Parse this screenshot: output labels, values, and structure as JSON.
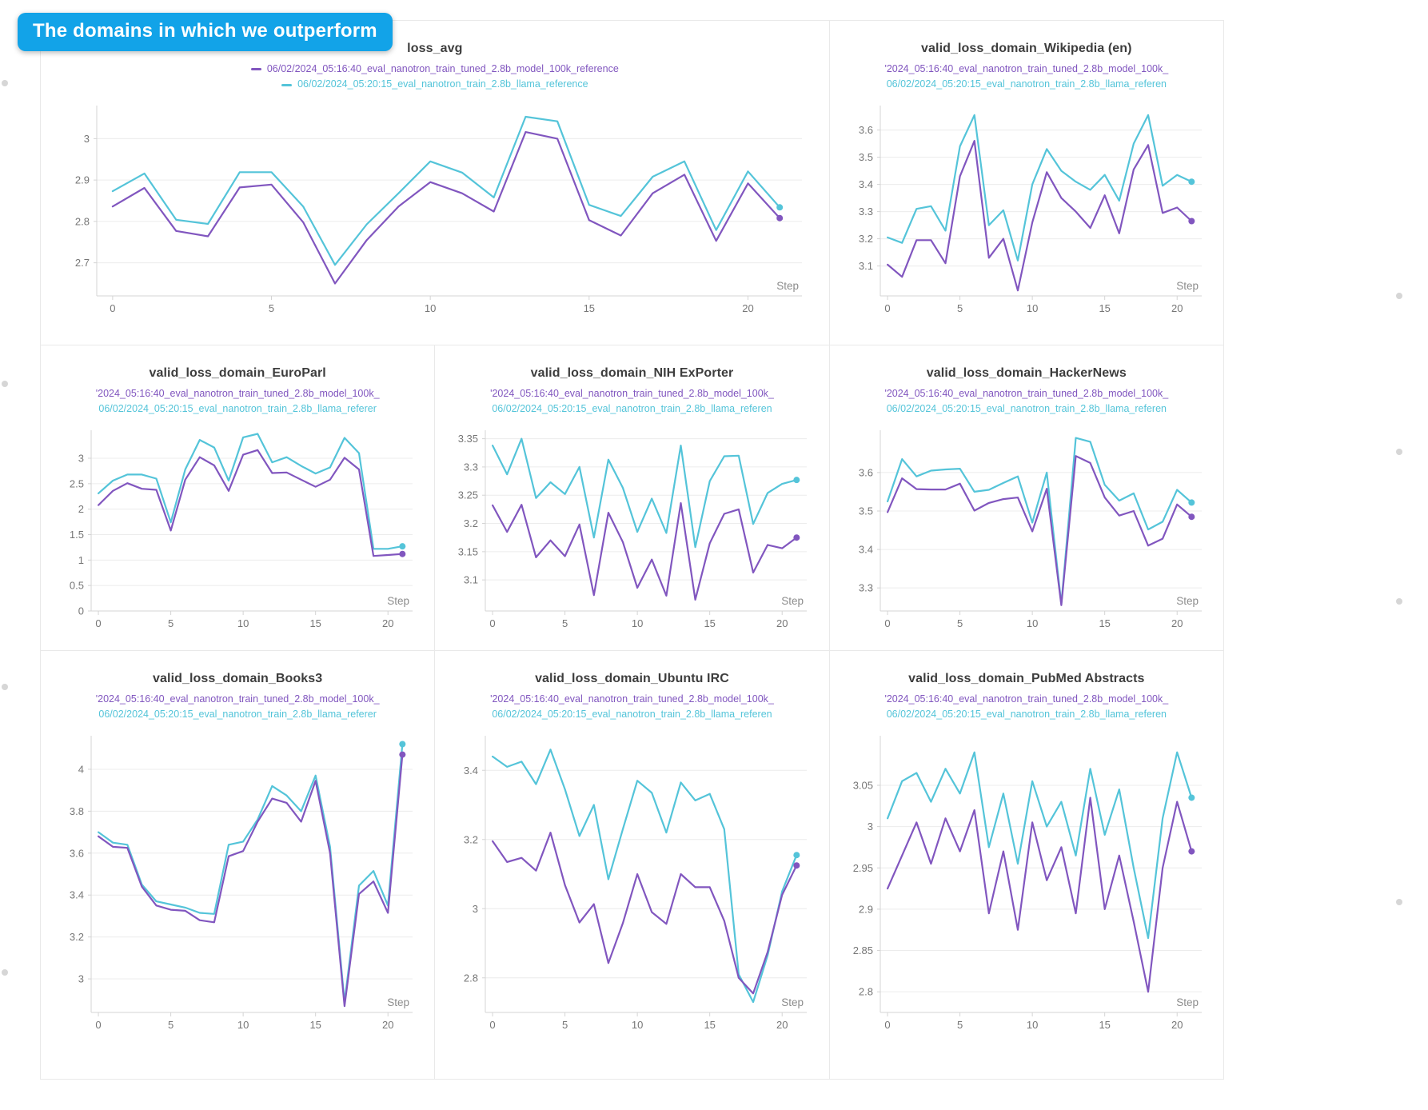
{
  "callout": {
    "label": "The domains in which we outperform",
    "bg": "#12a3e8"
  },
  "colors": {
    "run1": "#8156bf",
    "run2": "#54c4d9",
    "grid": "#ececec",
    "axis": "#d4d4d4",
    "tick_text": "#767676",
    "step_text": "#8c8c8c",
    "title_text": "#3d3d3d"
  },
  "chart_data": [
    {
      "type": "line",
      "title": "loss_avg",
      "legend": [
        "06/02/2024_05:16:40_eval_nanotron_train_tuned_2.8b_model_100k_reference",
        "06/02/2024_05:20:15_eval_nanotron_train_2.8b_llama_reference"
      ],
      "xlabel": "Step",
      "x": [
        0,
        1,
        2,
        3,
        4,
        5,
        6,
        7,
        8,
        9,
        10,
        11,
        12,
        13,
        14,
        15,
        16,
        17,
        18,
        19,
        20,
        21
      ],
      "xticks": [
        0,
        5,
        10,
        15,
        20
      ],
      "xlim": [
        -0.5,
        21.7
      ],
      "yticks": [
        2.7,
        2.8,
        2.9,
        3
      ],
      "ylim": [
        2.62,
        3.08
      ],
      "grid": true,
      "legend_position": "top",
      "series": [
        {
          "name": "06/02/2024_05:16:40_eval_nanotron_train_tuned_2.8b_model_100k_reference",
          "values": [
            2.836,
            2.881,
            2.777,
            2.764,
            2.882,
            2.889,
            2.798,
            2.65,
            2.755,
            2.836,
            2.895,
            2.868,
            2.824,
            3.016,
            3.0,
            2.803,
            2.766,
            2.868,
            2.913,
            2.753,
            2.892,
            2.808
          ]
        },
        {
          "name": "06/02/2024_05:20:15_eval_nanotron_train_2.8b_llama_reference",
          "values": [
            2.873,
            2.916,
            2.804,
            2.794,
            2.919,
            2.919,
            2.836,
            2.695,
            2.793,
            2.868,
            2.945,
            2.918,
            2.858,
            3.053,
            3.042,
            2.84,
            2.813,
            2.908,
            2.945,
            2.779,
            2.921,
            2.834
          ]
        }
      ]
    },
    {
      "type": "line",
      "title": "valid_loss_domain_Wikipedia (en)",
      "legend": [
        "'2024_05:16:40_eval_nanotron_train_tuned_2.8b_model_100k_",
        "06/02/2024_05:20:15_eval_nanotron_train_2.8b_llama_referen"
      ],
      "xlabel": "Step",
      "x": [
        0,
        1,
        2,
        3,
        4,
        5,
        6,
        7,
        8,
        9,
        10,
        11,
        12,
        13,
        14,
        15,
        16,
        17,
        18,
        19,
        20,
        21
      ],
      "xticks": [
        0,
        5,
        10,
        15,
        20
      ],
      "xlim": [
        -0.5,
        21.7
      ],
      "yticks": [
        3.1,
        3.2,
        3.3,
        3.4,
        3.5,
        3.6
      ],
      "ylim": [
        2.99,
        3.69
      ],
      "grid": true,
      "series": [
        {
          "name": "'2024_05:16:40_eval_nanotron_train_tuned_2.8b_model_100k_",
          "values": [
            3.105,
            3.06,
            3.195,
            3.195,
            3.11,
            3.43,
            3.56,
            3.13,
            3.2,
            3.01,
            3.26,
            3.445,
            3.35,
            3.3,
            3.24,
            3.36,
            3.22,
            3.455,
            3.545,
            3.295,
            3.315,
            3.265
          ]
        },
        {
          "name": "06/02/2024_05:20:15_eval_nanotron_train_2.8b_llama_referen",
          "values": [
            3.205,
            3.185,
            3.31,
            3.32,
            3.23,
            3.54,
            3.655,
            3.25,
            3.305,
            3.12,
            3.4,
            3.53,
            3.45,
            3.41,
            3.38,
            3.435,
            3.34,
            3.55,
            3.655,
            3.395,
            3.435,
            3.41
          ]
        }
      ]
    },
    {
      "type": "line",
      "title": "valid_loss_domain_EuroParl",
      "legend": [
        "'2024_05:16:40_eval_nanotron_train_tuned_2.8b_model_100k_",
        "06/02/2024_05:20:15_eval_nanotron_train_2.8b_llama_referer"
      ],
      "xlabel": "Step",
      "x": [
        0,
        1,
        2,
        3,
        4,
        5,
        6,
        7,
        8,
        9,
        10,
        11,
        12,
        13,
        14,
        15,
        16,
        17,
        18,
        19,
        20,
        21
      ],
      "xticks": [
        0,
        5,
        10,
        15,
        20
      ],
      "xlim": [
        -0.5,
        21.7
      ],
      "yticks": [
        0,
        0.5,
        1,
        1.5,
        2,
        2.5,
        3
      ],
      "ylim": [
        0,
        3.55
      ],
      "grid": true,
      "series": [
        {
          "name": "'2024_05:16:40_eval_nanotron_train_tuned_2.8b_model_100k_",
          "values": [
            2.08,
            2.36,
            2.51,
            2.4,
            2.38,
            1.58,
            2.58,
            3.02,
            2.86,
            2.36,
            3.07,
            3.16,
            2.71,
            2.72,
            2.58,
            2.44,
            2.58,
            3.01,
            2.78,
            1.08,
            1.1,
            1.12
          ]
        },
        {
          "name": "06/02/2024_05:20:15_eval_nanotron_train_2.8b_llama_referer",
          "values": [
            2.31,
            2.56,
            2.68,
            2.68,
            2.6,
            1.74,
            2.78,
            3.36,
            3.21,
            2.56,
            3.41,
            3.48,
            2.92,
            3.02,
            2.85,
            2.7,
            2.82,
            3.4,
            3.1,
            1.22,
            1.22,
            1.27
          ]
        }
      ]
    },
    {
      "type": "line",
      "title": "valid_loss_domain_NIH ExPorter",
      "legend": [
        "'2024_05:16:40_eval_nanotron_train_tuned_2.8b_model_100k_",
        "06/02/2024_05:20:15_eval_nanotron_train_2.8b_llama_referen"
      ],
      "xlabel": "Step",
      "x": [
        0,
        1,
        2,
        3,
        4,
        5,
        6,
        7,
        8,
        9,
        10,
        11,
        12,
        13,
        14,
        15,
        16,
        17,
        18,
        19,
        20,
        21
      ],
      "xticks": [
        0,
        5,
        10,
        15,
        20
      ],
      "xlim": [
        -0.5,
        21.7
      ],
      "yticks": [
        3.1,
        3.15,
        3.2,
        3.25,
        3.3,
        3.35
      ],
      "ylim": [
        3.045,
        3.365
      ],
      "grid": true,
      "series": [
        {
          "name": "'2024_05:16:40_eval_nanotron_train_tuned_2.8b_model_100k_",
          "values": [
            3.232,
            3.185,
            3.233,
            3.14,
            3.17,
            3.142,
            3.198,
            3.073,
            3.219,
            3.167,
            3.086,
            3.136,
            3.072,
            3.236,
            3.065,
            3.165,
            3.217,
            3.225,
            3.113,
            3.162,
            3.156,
            3.175
          ]
        },
        {
          "name": "06/02/2024_05:20:15_eval_nanotron_train_2.8b_llama_referen",
          "values": [
            3.338,
            3.287,
            3.35,
            3.245,
            3.273,
            3.252,
            3.3,
            3.175,
            3.313,
            3.263,
            3.185,
            3.244,
            3.183,
            3.338,
            3.158,
            3.275,
            3.319,
            3.32,
            3.199,
            3.254,
            3.27,
            3.277
          ]
        }
      ]
    },
    {
      "type": "line",
      "title": "valid_loss_domain_HackerNews",
      "legend": [
        "'2024_05:16:40_eval_nanotron_train_tuned_2.8b_model_100k_",
        "06/02/2024_05:20:15_eval_nanotron_train_2.8b_llama_referen"
      ],
      "xlabel": "Step",
      "x": [
        0,
        1,
        2,
        3,
        4,
        5,
        6,
        7,
        8,
        9,
        10,
        11,
        12,
        13,
        14,
        15,
        16,
        17,
        18,
        19,
        20,
        21
      ],
      "xticks": [
        0,
        5,
        10,
        15,
        20
      ],
      "xlim": [
        -0.5,
        21.7
      ],
      "yticks": [
        3.3,
        3.4,
        3.5,
        3.6
      ],
      "ylim": [
        3.24,
        3.71
      ],
      "grid": true,
      "series": [
        {
          "name": "'2024_05:16:40_eval_nanotron_train_tuned_2.8b_model_100k_",
          "values": [
            3.497,
            3.585,
            3.557,
            3.556,
            3.556,
            3.571,
            3.501,
            3.521,
            3.531,
            3.535,
            3.447,
            3.558,
            3.255,
            3.643,
            3.625,
            3.535,
            3.488,
            3.5,
            3.41,
            3.428,
            3.517,
            3.485
          ]
        },
        {
          "name": "06/02/2024_05:20:15_eval_nanotron_train_2.8b_llama_referen",
          "values": [
            3.525,
            3.635,
            3.59,
            3.605,
            3.608,
            3.61,
            3.55,
            3.555,
            3.573,
            3.59,
            3.47,
            3.6,
            3.258,
            3.69,
            3.68,
            3.568,
            3.527,
            3.546,
            3.452,
            3.472,
            3.555,
            3.522
          ]
        }
      ]
    },
    {
      "type": "line",
      "title": "valid_loss_domain_Books3",
      "legend": [
        "'2024_05:16:40_eval_nanotron_train_tuned_2.8b_model_100k_",
        "06/02/2024_05:20:15_eval_nanotron_train_2.8b_llama_referer"
      ],
      "xlabel": "Step",
      "x": [
        0,
        1,
        2,
        3,
        4,
        5,
        6,
        7,
        8,
        9,
        10,
        11,
        12,
        13,
        14,
        15,
        16,
        17,
        18,
        19,
        20,
        21
      ],
      "xticks": [
        0,
        5,
        10,
        15,
        20
      ],
      "xlim": [
        -0.5,
        21.7
      ],
      "yticks": [
        3,
        3.2,
        3.4,
        3.6,
        3.8,
        4
      ],
      "ylim": [
        2.84,
        4.16
      ],
      "grid": true,
      "series": [
        {
          "name": "'2024_05:16:40_eval_nanotron_train_tuned_2.8b_model_100k_",
          "values": [
            3.68,
            3.63,
            3.625,
            3.44,
            3.35,
            3.33,
            3.325,
            3.28,
            3.27,
            3.585,
            3.61,
            3.75,
            3.86,
            3.84,
            3.75,
            3.945,
            3.6,
            2.87,
            3.405,
            3.465,
            3.315,
            4.07
          ]
        },
        {
          "name": "06/02/2024_05:20:15_eval_nanotron_train_2.8b_llama_referer",
          "values": [
            3.7,
            3.65,
            3.64,
            3.45,
            3.37,
            3.355,
            3.34,
            3.315,
            3.31,
            3.64,
            3.655,
            3.76,
            3.92,
            3.875,
            3.8,
            3.97,
            3.63,
            2.89,
            3.445,
            3.515,
            3.35,
            4.12
          ]
        }
      ]
    },
    {
      "type": "line",
      "title": "valid_loss_domain_Ubuntu IRC",
      "legend": [
        "'2024_05:16:40_eval_nanotron_train_tuned_2.8b_model_100k_",
        "06/02/2024_05:20:15_eval_nanotron_train_2.8b_llama_referen"
      ],
      "xlabel": "Step",
      "x": [
        0,
        1,
        2,
        3,
        4,
        5,
        6,
        7,
        8,
        9,
        10,
        11,
        12,
        13,
        14,
        15,
        16,
        17,
        18,
        19,
        20,
        21
      ],
      "xticks": [
        0,
        5,
        10,
        15,
        20
      ],
      "xlim": [
        -0.5,
        21.7
      ],
      "yticks": [
        2.8,
        3,
        3.2,
        3.4
      ],
      "ylim": [
        2.7,
        3.5
      ],
      "grid": true,
      "series": [
        {
          "name": "'2024_05:16:40_eval_nanotron_train_tuned_2.8b_model_100k_",
          "values": [
            3.195,
            3.135,
            3.147,
            3.11,
            3.22,
            3.068,
            2.96,
            3.013,
            2.843,
            2.958,
            3.1,
            2.99,
            2.956,
            3.1,
            3.062,
            3.062,
            2.965,
            2.8,
            2.755,
            2.875,
            3.04,
            3.125
          ]
        },
        {
          "name": "06/02/2024_05:20:15_eval_nanotron_train_2.8b_llama_referen",
          "values": [
            3.44,
            3.41,
            3.425,
            3.36,
            3.46,
            3.345,
            3.21,
            3.3,
            3.085,
            3.23,
            3.37,
            3.335,
            3.22,
            3.365,
            3.313,
            3.332,
            3.23,
            2.81,
            2.73,
            2.865,
            3.05,
            3.155
          ]
        }
      ]
    },
    {
      "type": "line",
      "title": "valid_loss_domain_PubMed Abstracts",
      "legend": [
        "'2024_05:16:40_eval_nanotron_train_tuned_2.8b_model_100k_",
        "06/02/2024_05:20:15_eval_nanotron_train_2.8b_llama_referen"
      ],
      "xlabel": "Step",
      "x": [
        0,
        1,
        2,
        3,
        4,
        5,
        6,
        7,
        8,
        9,
        10,
        11,
        12,
        13,
        14,
        15,
        16,
        17,
        18,
        19,
        20,
        21
      ],
      "xticks": [
        0,
        5,
        10,
        15,
        20
      ],
      "xlim": [
        -0.5,
        21.7
      ],
      "yticks": [
        2.8,
        2.85,
        2.9,
        2.95,
        3,
        3.05
      ],
      "ylim": [
        2.775,
        3.11
      ],
      "grid": true,
      "series": [
        {
          "name": "'2024_05:16:40_eval_nanotron_train_tuned_2.8b_model_100k_",
          "values": [
            2.925,
            2.965,
            3.005,
            2.955,
            3.01,
            2.97,
            3.02,
            2.895,
            2.97,
            2.875,
            3.005,
            2.935,
            2.975,
            2.895,
            3.035,
            2.9,
            2.965,
            2.885,
            2.8,
            2.95,
            3.03,
            2.97
          ]
        },
        {
          "name": "06/02/2024_05:20:15_eval_nanotron_train_2.8b_llama_referen",
          "values": [
            3.01,
            3.055,
            3.065,
            3.03,
            3.07,
            3.04,
            3.09,
            2.975,
            3.04,
            2.955,
            3.055,
            3.0,
            3.03,
            2.965,
            3.07,
            2.99,
            3.045,
            2.95,
            2.865,
            3.01,
            3.09,
            3.035
          ]
        }
      ]
    }
  ]
}
